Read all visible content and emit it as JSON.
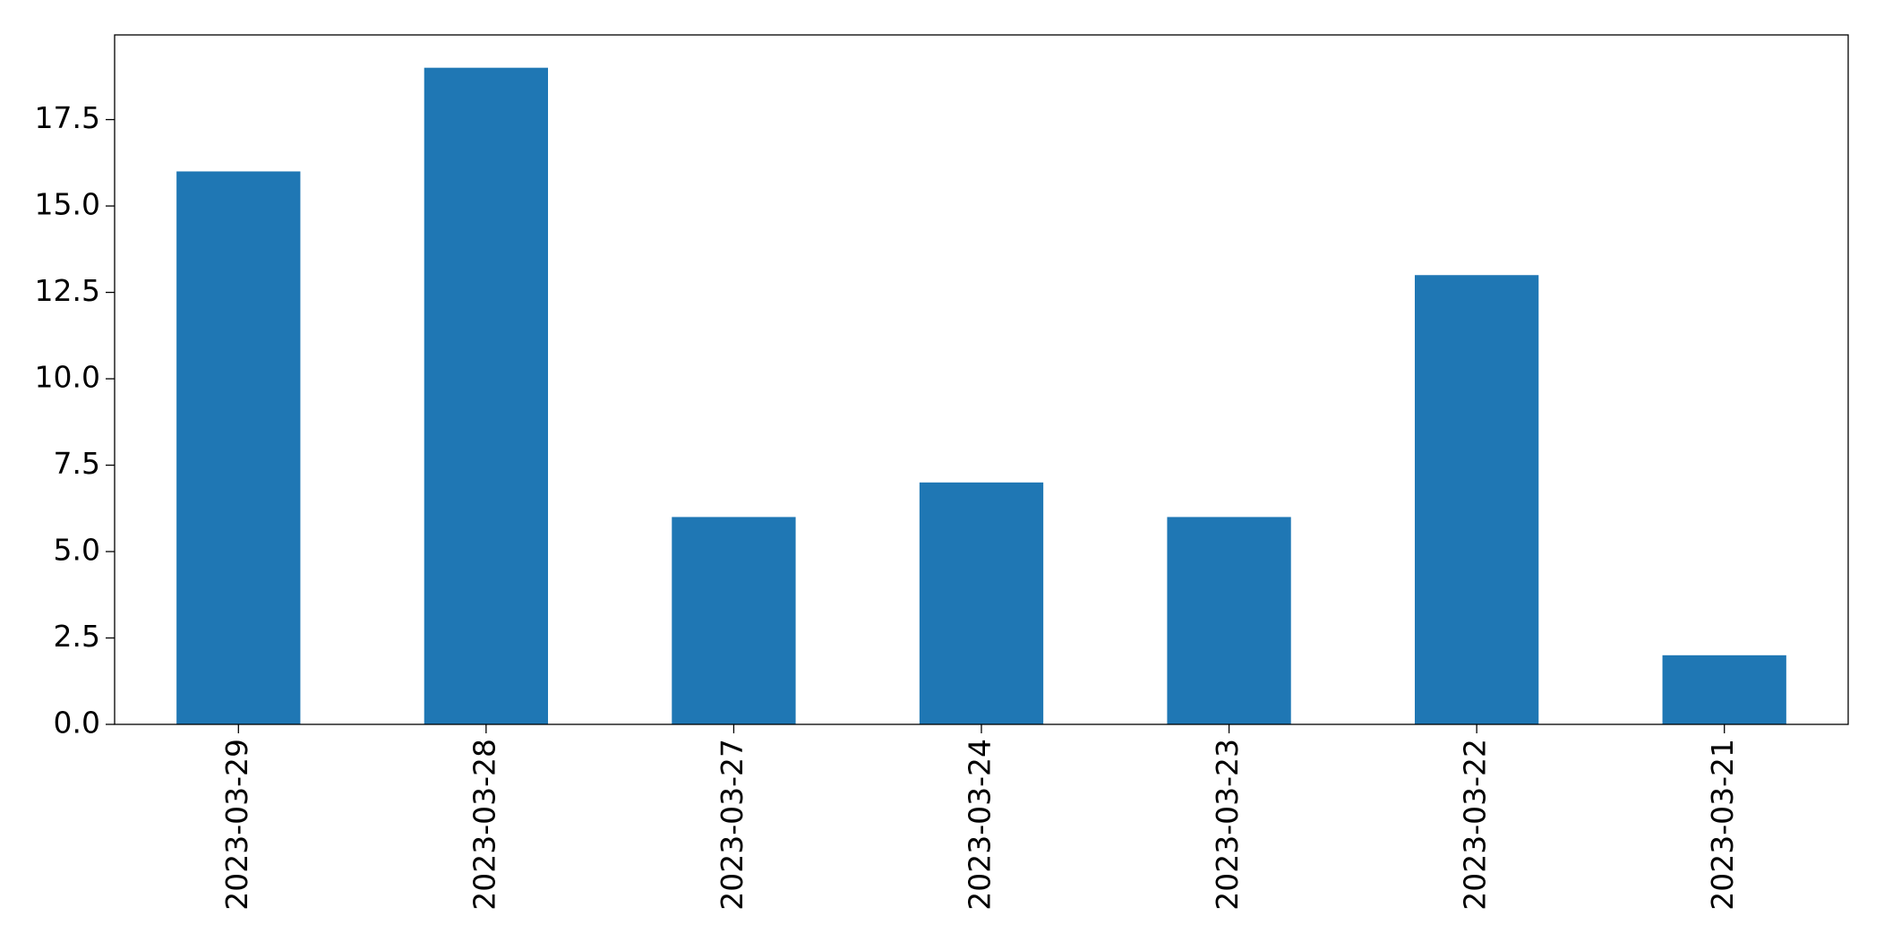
{
  "chart_data": {
    "type": "bar",
    "categories": [
      "2023-03-29",
      "2023-03-28",
      "2023-03-27",
      "2023-03-24",
      "2023-03-23",
      "2023-03-22",
      "2023-03-21"
    ],
    "values": [
      16,
      19,
      6,
      7,
      6,
      13,
      2
    ],
    "color": "#1f77b4",
    "ylim": [
      0,
      19.95
    ],
    "yticks": [
      {
        "value": 0,
        "label": "0.0"
      },
      2.5,
      {
        "value": 5,
        "label": "5.0"
      },
      7.5,
      {
        "value": 10,
        "label": "10.0"
      },
      12.5,
      {
        "value": 15,
        "label": "15.0"
      },
      17.5
    ],
    "grid": false
  }
}
